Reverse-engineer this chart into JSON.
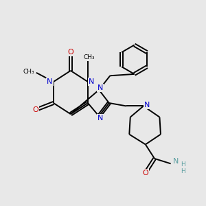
{
  "bg_color": "#e8e8e8",
  "bond_color": "#000000",
  "N_color": "#0000cc",
  "O_color": "#cc0000",
  "NH2_N_color": "#5a9ea0",
  "NH2_H_color": "#5a9ea0",
  "line_width": 1.4,
  "figsize": [
    3.0,
    3.0
  ],
  "dpi": 100,
  "xlim": [
    0,
    10
  ],
  "ylim": [
    0,
    10
  ]
}
